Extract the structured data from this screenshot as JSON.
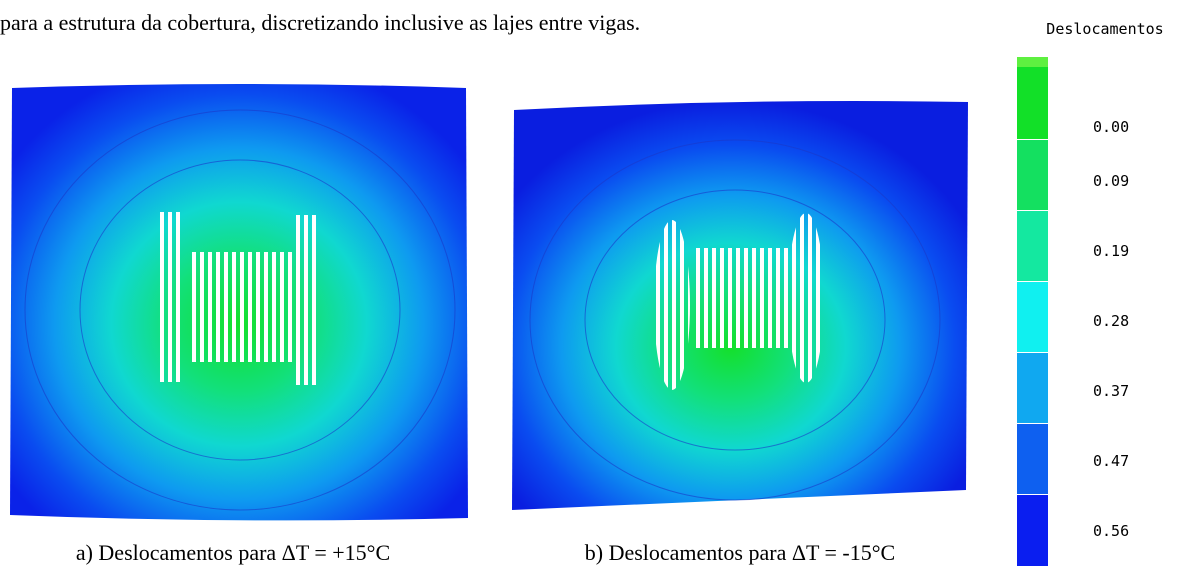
{
  "text": "para a estrutura da cobertura, discretizando inclusive as lajes entre vigas.",
  "legend": {
    "title": "Deslocamentos",
    "labels": [
      "0.00",
      "0.09",
      "0.19",
      "0.28",
      "0.37",
      "0.47",
      "0.56"
    ]
  },
  "figures": [
    {
      "caption": "a) Deslocamentos para ΔT = +15°C"
    },
    {
      "caption": "b) Deslocamentos para ΔT = -15°C"
    }
  ]
}
